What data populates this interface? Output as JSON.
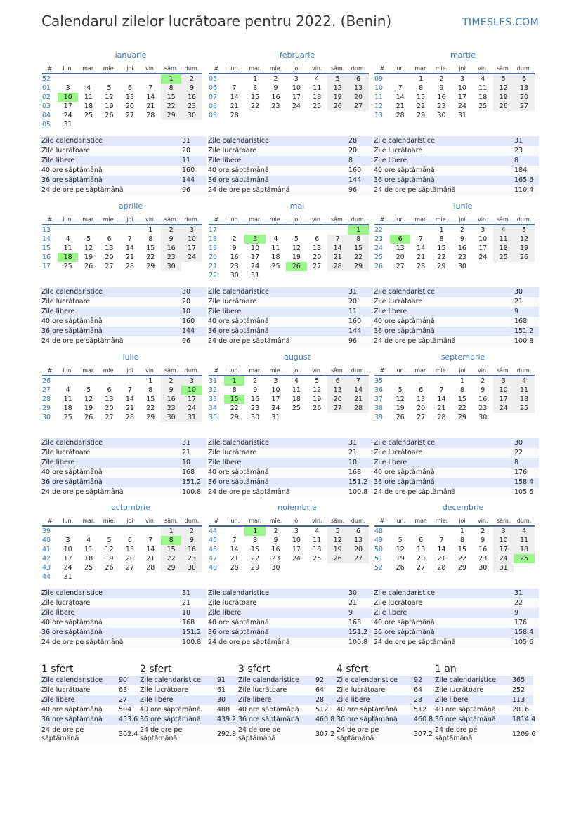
{
  "header": {
    "title": "Calendarul zilelor lucrătoare pentru 2022. (Benin)",
    "brand": "TIMESLES.COM"
  },
  "weekday_headers": [
    "#",
    "lun.",
    "mar.",
    "mie.",
    "joi",
    "vin.",
    "sâm.",
    "dum."
  ],
  "stat_labels": [
    "Zile calendaristice",
    "Zile lucrătoare",
    "Zile libere",
    "40 ore săptămână",
    "36 ore săptămână",
    "24 de ore pe săptămână"
  ],
  "colors": {
    "accent": "#3a7cc0",
    "holiday": "#9af58a",
    "weekend": "#efefef",
    "stripe": "#e3e8fb"
  },
  "months": [
    {
      "name": "ianuarie",
      "first_weekday": 6,
      "days": 31,
      "weeks": [
        "52",
        "01",
        "02",
        "03",
        "04",
        "05"
      ],
      "holidays": [
        1,
        10
      ],
      "stats": [
        "31",
        "20",
        "11",
        "160",
        "144",
        "96"
      ]
    },
    {
      "name": "februarie",
      "first_weekday": 2,
      "days": 28,
      "weeks": [
        "05",
        "06",
        "07",
        "08",
        "09"
      ],
      "holidays": [],
      "stats": [
        "28",
        "20",
        "8",
        "160",
        "144",
        "96"
      ]
    },
    {
      "name": "martie",
      "first_weekday": 2,
      "days": 31,
      "weeks": [
        "09",
        "10",
        "11",
        "12",
        "13"
      ],
      "holidays": [],
      "stats": [
        "31",
        "23",
        "8",
        "184",
        "165.6",
        "110.4"
      ]
    },
    {
      "name": "aprilie",
      "first_weekday": 5,
      "days": 30,
      "weeks": [
        "13",
        "14",
        "15",
        "16",
        "17"
      ],
      "holidays": [
        18
      ],
      "stats": [
        "30",
        "20",
        "10",
        "160",
        "144",
        "96"
      ]
    },
    {
      "name": "mai",
      "first_weekday": 7,
      "days": 31,
      "weeks": [
        "17",
        "18",
        "19",
        "20",
        "21",
        "22"
      ],
      "holidays": [
        1,
        3,
        26
      ],
      "stats": [
        "31",
        "20",
        "11",
        "160",
        "144",
        "96"
      ]
    },
    {
      "name": "iunie",
      "first_weekday": 3,
      "days": 30,
      "weeks": [
        "22",
        "23",
        "24",
        "25",
        "26"
      ],
      "holidays": [
        6
      ],
      "stats": [
        "30",
        "21",
        "9",
        "168",
        "151.2",
        "100.8"
      ]
    },
    {
      "name": "iulie",
      "first_weekday": 5,
      "days": 31,
      "weeks": [
        "26",
        "27",
        "28",
        "29",
        "30"
      ],
      "holidays": [
        10
      ],
      "stats": [
        "31",
        "21",
        "10",
        "168",
        "151.2",
        "100.8"
      ]
    },
    {
      "name": "august",
      "first_weekday": 1,
      "days": 31,
      "weeks": [
        "31",
        "32",
        "33",
        "34",
        "35"
      ],
      "holidays": [
        1,
        15
      ],
      "stats": [
        "31",
        "21",
        "10",
        "168",
        "151.2",
        "100.8"
      ]
    },
    {
      "name": "septembrie",
      "first_weekday": 4,
      "days": 30,
      "weeks": [
        "35",
        "36",
        "37",
        "38",
        "39"
      ],
      "holidays": [],
      "stats": [
        "30",
        "22",
        "8",
        "176",
        "158.4",
        "105.6"
      ]
    },
    {
      "name": "octombrie",
      "first_weekday": 6,
      "days": 31,
      "weeks": [
        "39",
        "40",
        "41",
        "42",
        "43",
        "44"
      ],
      "holidays": [
        8
      ],
      "stats": [
        "31",
        "21",
        "10",
        "168",
        "151.2",
        "100.8"
      ]
    },
    {
      "name": "noiembrie",
      "first_weekday": 2,
      "days": 30,
      "weeks": [
        "44",
        "45",
        "46",
        "47",
        "48"
      ],
      "holidays": [
        1
      ],
      "stats": [
        "30",
        "21",
        "9",
        "168",
        "151.2",
        "100.8"
      ]
    },
    {
      "name": "decembrie",
      "first_weekday": 4,
      "days": 31,
      "weeks": [
        "48",
        "49",
        "50",
        "51",
        "52"
      ],
      "holidays": [
        25
      ],
      "stats": [
        "31",
        "22",
        "9",
        "176",
        "158.4",
        "105.6"
      ]
    }
  ],
  "summary": [
    {
      "title": "1 sfert",
      "stats": [
        "90",
        "63",
        "27",
        "504",
        "453.6",
        "302.4"
      ]
    },
    {
      "title": "2 sfert",
      "stats": [
        "91",
        "61",
        "30",
        "488",
        "439.2",
        "292.8"
      ]
    },
    {
      "title": "3 sfert",
      "stats": [
        "92",
        "64",
        "28",
        "512",
        "460.8",
        "307.2"
      ]
    },
    {
      "title": "4 sfert",
      "stats": [
        "92",
        "64",
        "28",
        "512",
        "460.8",
        "307.2"
      ]
    },
    {
      "title": "1 an",
      "stats": [
        "365",
        "252",
        "113",
        "2016",
        "1814.4",
        "1209.6"
      ]
    }
  ]
}
